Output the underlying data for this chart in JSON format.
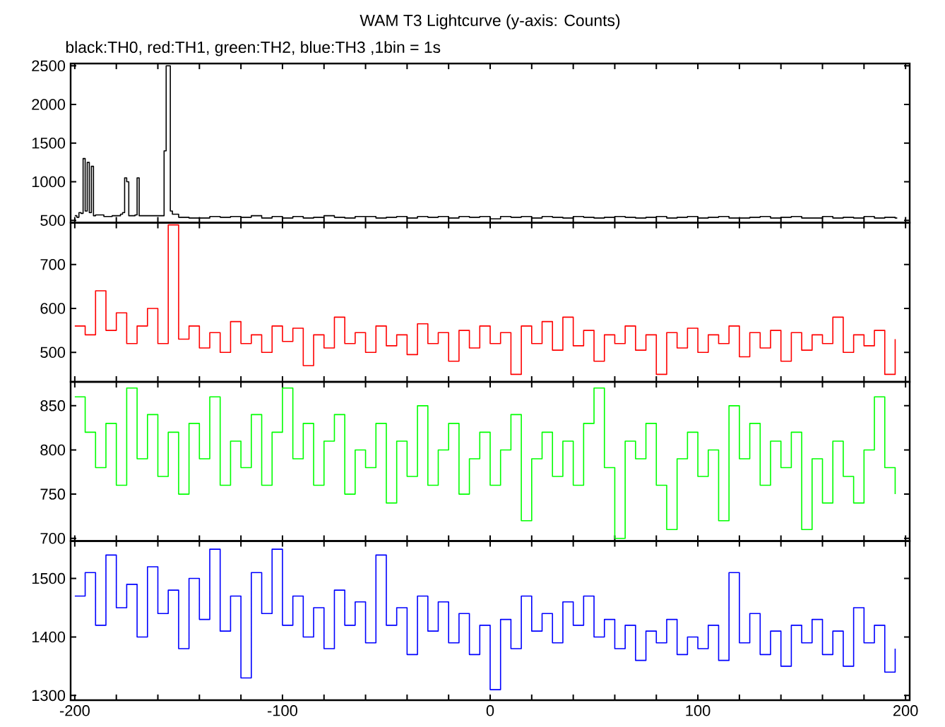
{
  "chart_data": [
    {
      "type": "step",
      "title": "WAM T3 Lightcurve (y-axis: Counts)",
      "subtitle": "black:TH0, red:TH1, green:TH2, blue:TH3 ,1bin = 1s",
      "color": "#000000",
      "tick_labels": "y",
      "xlim": [
        -202,
        202
      ],
      "ylim": [
        470,
        2530
      ],
      "yticks": [
        500,
        1000,
        1500,
        2000,
        2500
      ],
      "xticks": [
        -200,
        {
          "value": -180,
          "label": null
        },
        {
          "value": -160,
          "label": null
        },
        {
          "value": -140,
          "label": null
        },
        {
          "value": -120,
          "label": null
        },
        -100,
        {
          "value": -80,
          "label": null
        },
        {
          "value": -60,
          "label": null
        },
        {
          "value": -40,
          "label": null
        },
        {
          "value": -20,
          "label": null
        },
        0,
        {
          "value": 20,
          "label": null
        },
        {
          "value": 40,
          "label": null
        },
        {
          "value": 60,
          "label": null
        },
        {
          "value": 80,
          "label": null
        },
        100,
        {
          "value": 120,
          "label": null
        },
        {
          "value": 140,
          "label": null
        },
        {
          "value": 160,
          "label": null
        },
        {
          "value": 180,
          "label": null
        },
        200
      ],
      "x": [
        -200,
        -199,
        -198,
        -197,
        -196,
        -195,
        -194,
        -193,
        -192,
        -191,
        -190,
        -186,
        -182,
        -178,
        -177,
        -176,
        -175,
        -174,
        -171,
        -170,
        -169,
        -158,
        -157,
        -156,
        -155,
        -154,
        -153,
        -150,
        -145,
        -140,
        -135,
        -130,
        -125,
        -120,
        -115,
        -110,
        -105,
        -100,
        -95,
        -90,
        -85,
        -80,
        -75,
        -70,
        -65,
        -60,
        -55,
        -50,
        -45,
        -40,
        -35,
        -30,
        -25,
        -20,
        -15,
        -10,
        -5,
        0,
        5,
        10,
        15,
        20,
        25,
        30,
        35,
        40,
        45,
        50,
        55,
        60,
        65,
        70,
        75,
        80,
        85,
        90,
        95,
        100,
        105,
        110,
        115,
        120,
        125,
        130,
        135,
        140,
        145,
        150,
        155,
        160,
        165,
        170,
        175,
        180,
        185,
        190,
        195,
        196
      ],
      "values": [
        560,
        540,
        600,
        590,
        1300,
        620,
        1250,
        600,
        1200,
        560,
        570,
        550,
        560,
        580,
        600,
        1050,
        1000,
        560,
        570,
        1050,
        560,
        560,
        1400,
        2500,
        2500,
        620,
        580,
        540,
        530,
        530,
        550,
        540,
        550,
        540,
        560,
        530,
        550,
        530,
        550,
        530,
        540,
        560,
        540,
        530,
        550,
        550,
        530,
        540,
        550,
        530,
        550,
        540,
        550,
        530,
        550,
        540,
        550,
        520,
        550,
        540,
        550,
        530,
        550,
        540,
        530,
        550,
        540,
        530,
        540,
        550,
        540,
        530,
        540,
        550,
        530,
        540,
        550,
        530,
        540,
        550,
        530,
        530,
        540,
        550,
        530,
        540,
        550,
        530,
        530,
        550,
        530,
        540,
        530,
        550,
        530,
        540,
        530,
        530
      ]
    },
    {
      "type": "step",
      "color": "#ff0000",
      "tick_labels": "y",
      "xlim": [
        -202,
        202
      ],
      "ylim": [
        433,
        795
      ],
      "yticks": [
        500,
        600,
        700
      ],
      "xticks": [
        -200,
        {
          "value": -180,
          "label": null
        },
        {
          "value": -160,
          "label": null
        },
        {
          "value": -140,
          "label": null
        },
        {
          "value": -120,
          "label": null
        },
        -100,
        {
          "value": -80,
          "label": null
        },
        {
          "value": -60,
          "label": null
        },
        {
          "value": -40,
          "label": null
        },
        {
          "value": -20,
          "label": null
        },
        0,
        {
          "value": 20,
          "label": null
        },
        {
          "value": 40,
          "label": null
        },
        {
          "value": 60,
          "label": null
        },
        {
          "value": 80,
          "label": null
        },
        100,
        {
          "value": 120,
          "label": null
        },
        {
          "value": 140,
          "label": null
        },
        {
          "value": 160,
          "label": null
        },
        {
          "value": 180,
          "label": null
        },
        200
      ],
      "x": [
        -200,
        -195,
        -190,
        -185,
        -180,
        -175,
        -170,
        -165,
        -160,
        -155,
        -150,
        -145,
        -140,
        -135,
        -130,
        -125,
        -120,
        -115,
        -110,
        -105,
        -100,
        -95,
        -90,
        -85,
        -80,
        -75,
        -70,
        -65,
        -60,
        -55,
        -50,
        -45,
        -40,
        -35,
        -30,
        -25,
        -20,
        -15,
        -10,
        -5,
        0,
        5,
        10,
        15,
        20,
        25,
        30,
        35,
        40,
        45,
        50,
        55,
        60,
        65,
        70,
        75,
        80,
        85,
        90,
        95,
        100,
        105,
        110,
        115,
        120,
        125,
        130,
        135,
        140,
        145,
        150,
        155,
        160,
        165,
        170,
        175,
        180,
        185,
        190,
        195
      ],
      "values": [
        560,
        540,
        640,
        550,
        590,
        520,
        560,
        600,
        520,
        790,
        530,
        560,
        510,
        545,
        500,
        570,
        520,
        540,
        500,
        560,
        525,
        555,
        470,
        540,
        510,
        580,
        520,
        545,
        500,
        560,
        515,
        540,
        495,
        565,
        520,
        545,
        480,
        550,
        510,
        560,
        520,
        545,
        450,
        560,
        520,
        570,
        505,
        580,
        515,
        550,
        480,
        540,
        520,
        560,
        505,
        540,
        450,
        545,
        510,
        555,
        500,
        540,
        520,
        560,
        490,
        545,
        510,
        550,
        480,
        545,
        505,
        540,
        520,
        580,
        500,
        540,
        515,
        550,
        450,
        530
      ]
    },
    {
      "type": "step",
      "color": "#00ff00",
      "tick_labels": "y",
      "xlim": [
        -202,
        202
      ],
      "ylim": [
        697,
        877
      ],
      "yticks": [
        700,
        750,
        800,
        850
      ],
      "xticks": [
        -200,
        {
          "value": -180,
          "label": null
        },
        {
          "value": -160,
          "label": null
        },
        {
          "value": -140,
          "label": null
        },
        {
          "value": -120,
          "label": null
        },
        -100,
        {
          "value": -80,
          "label": null
        },
        {
          "value": -60,
          "label": null
        },
        {
          "value": -40,
          "label": null
        },
        {
          "value": -20,
          "label": null
        },
        0,
        {
          "value": 20,
          "label": null
        },
        {
          "value": 40,
          "label": null
        },
        {
          "value": 60,
          "label": null
        },
        {
          "value": 80,
          "label": null
        },
        100,
        {
          "value": 120,
          "label": null
        },
        {
          "value": 140,
          "label": null
        },
        {
          "value": 160,
          "label": null
        },
        {
          "value": 180,
          "label": null
        },
        200
      ],
      "x": [
        -200,
        -195,
        -190,
        -185,
        -180,
        -175,
        -170,
        -165,
        -160,
        -155,
        -150,
        -145,
        -140,
        -135,
        -130,
        -125,
        -120,
        -115,
        -110,
        -105,
        -100,
        -95,
        -90,
        -85,
        -80,
        -75,
        -70,
        -65,
        -60,
        -55,
        -50,
        -45,
        -40,
        -35,
        -30,
        -25,
        -20,
        -15,
        -10,
        -5,
        0,
        5,
        10,
        15,
        20,
        25,
        30,
        35,
        40,
        45,
        50,
        55,
        60,
        65,
        70,
        75,
        80,
        85,
        90,
        95,
        100,
        105,
        110,
        115,
        120,
        125,
        130,
        135,
        140,
        145,
        150,
        155,
        160,
        165,
        170,
        175,
        180,
        185,
        190,
        195
      ],
      "values": [
        860,
        820,
        780,
        830,
        760,
        870,
        790,
        840,
        770,
        820,
        750,
        830,
        790,
        860,
        760,
        810,
        780,
        840,
        760,
        820,
        870,
        790,
        830,
        760,
        810,
        840,
        750,
        800,
        780,
        830,
        740,
        810,
        770,
        850,
        760,
        800,
        830,
        750,
        790,
        820,
        760,
        800,
        840,
        720,
        790,
        820,
        770,
        810,
        760,
        830,
        870,
        780,
        700,
        810,
        790,
        830,
        760,
        710,
        790,
        820,
        770,
        800,
        720,
        850,
        790,
        830,
        760,
        810,
        780,
        820,
        710,
        790,
        740,
        810,
        770,
        740,
        800,
        860,
        780,
        750
      ]
    },
    {
      "type": "step",
      "color": "#0000ff",
      "xlim": [
        -202,
        202
      ],
      "ylim": [
        1292,
        1564
      ],
      "yticks": [
        1300,
        1400,
        1500
      ],
      "xticks": [
        -200,
        {
          "value": -180,
          "label": null
        },
        {
          "value": -160,
          "label": null
        },
        {
          "value": -140,
          "label": null
        },
        {
          "value": -120,
          "label": null
        },
        -100,
        {
          "value": -80,
          "label": null
        },
        {
          "value": -60,
          "label": null
        },
        {
          "value": -40,
          "label": null
        },
        {
          "value": -20,
          "label": null
        },
        0,
        {
          "value": 20,
          "label": null
        },
        {
          "value": 40,
          "label": null
        },
        {
          "value": 60,
          "label": null
        },
        {
          "value": 80,
          "label": null
        },
        100,
        {
          "value": 120,
          "label": null
        },
        {
          "value": 140,
          "label": null
        },
        {
          "value": 160,
          "label": null
        },
        {
          "value": 180,
          "label": null
        },
        200
      ],
      "x": [
        -200,
        -195,
        -190,
        -185,
        -180,
        -175,
        -170,
        -165,
        -160,
        -155,
        -150,
        -145,
        -140,
        -135,
        -130,
        -125,
        -120,
        -115,
        -110,
        -105,
        -100,
        -95,
        -90,
        -85,
        -80,
        -75,
        -70,
        -65,
        -60,
        -55,
        -50,
        -45,
        -40,
        -35,
        -30,
        -25,
        -20,
        -15,
        -10,
        -5,
        0,
        5,
        10,
        15,
        20,
        25,
        30,
        35,
        40,
        45,
        50,
        55,
        60,
        65,
        70,
        75,
        80,
        85,
        90,
        95,
        100,
        105,
        110,
        115,
        120,
        125,
        130,
        135,
        140,
        145,
        150,
        155,
        160,
        165,
        170,
        175,
        180,
        185,
        190,
        195
      ],
      "values": [
        1470,
        1510,
        1420,
        1540,
        1450,
        1490,
        1400,
        1520,
        1440,
        1480,
        1380,
        1500,
        1430,
        1550,
        1410,
        1470,
        1330,
        1510,
        1440,
        1550,
        1420,
        1470,
        1400,
        1450,
        1380,
        1480,
        1420,
        1460,
        1390,
        1540,
        1420,
        1450,
        1370,
        1470,
        1410,
        1460,
        1390,
        1440,
        1370,
        1420,
        1310,
        1430,
        1380,
        1470,
        1410,
        1440,
        1390,
        1460,
        1420,
        1470,
        1400,
        1430,
        1380,
        1420,
        1360,
        1410,
        1390,
        1430,
        1370,
        1400,
        1380,
        1420,
        1360,
        1510,
        1390,
        1440,
        1370,
        1410,
        1350,
        1420,
        1390,
        1430,
        1370,
        1410,
        1350,
        1450,
        1390,
        1420,
        1340,
        1380
      ]
    }
  ]
}
